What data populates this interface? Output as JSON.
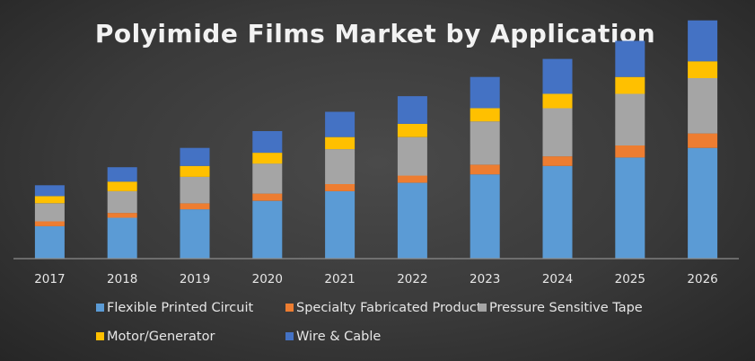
{
  "chart_data": {
    "type": "bar",
    "stacked": true,
    "title": "Polyimide Films Market by Application",
    "categories": [
      "2017",
      "2018",
      "2019",
      "2020",
      "2021",
      "2022",
      "2023",
      "2024",
      "2025",
      "2026"
    ],
    "series": [
      {
        "name": "Flexible Printed Circuit",
        "color": "#5b9bd5",
        "values": [
          27,
          34,
          41,
          48,
          56,
          63,
          70,
          77,
          84,
          92
        ]
      },
      {
        "name": "Specialty Fabricated Product",
        "color": "#ed7d31",
        "values": [
          4,
          4,
          5,
          6,
          6,
          6,
          8,
          8,
          10,
          12
        ]
      },
      {
        "name": "Pressure Sensitive Tape",
        "color": "#a5a5a5",
        "values": [
          15,
          18,
          22,
          25,
          29,
          32,
          36,
          40,
          43,
          46
        ]
      },
      {
        "name": "Motor/Generator",
        "color": "#ffc000",
        "values": [
          6,
          8,
          9,
          9,
          10,
          11,
          11,
          12,
          14,
          14
        ]
      },
      {
        "name": "Wire & Cable",
        "color": "#4472c4",
        "values": [
          9,
          12,
          15,
          18,
          21,
          23,
          26,
          29,
          30,
          34
        ]
      }
    ],
    "ylim": [
      0,
      200
    ],
    "grid": false,
    "legend_position": "bottom"
  }
}
